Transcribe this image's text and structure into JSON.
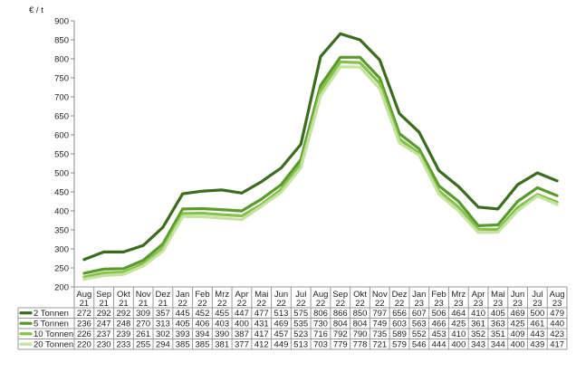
{
  "chart_data": {
    "type": "line",
    "title": "",
    "ylabel": "€ / t",
    "xlabel": "",
    "ylim": [
      200,
      900
    ],
    "yticks": [
      200,
      250,
      300,
      350,
      400,
      450,
      500,
      550,
      600,
      650,
      700,
      750,
      800,
      850,
      900
    ],
    "grid": false,
    "legend": "table-below",
    "categories": [
      [
        "Aug",
        "21"
      ],
      [
        "Sep",
        "21"
      ],
      [
        "Okt",
        "21"
      ],
      [
        "Nov",
        "21"
      ],
      [
        "Dez",
        "21"
      ],
      [
        "Jan",
        "22"
      ],
      [
        "Feb",
        "22"
      ],
      [
        "Mrz",
        "22"
      ],
      [
        "Apr",
        "22"
      ],
      [
        "Mai",
        "22"
      ],
      [
        "Jun",
        "22"
      ],
      [
        "Jul",
        "22"
      ],
      [
        "Aug",
        "22"
      ],
      [
        "Sep",
        "22"
      ],
      [
        "Okt",
        "22"
      ],
      [
        "Nov",
        "22"
      ],
      [
        "Dez",
        "22"
      ],
      [
        "Jan",
        "23"
      ],
      [
        "Feb",
        "23"
      ],
      [
        "Mrz",
        "23"
      ],
      [
        "Apr",
        "23"
      ],
      [
        "Mai",
        "23"
      ],
      [
        "Jun",
        "23"
      ],
      [
        "Jul",
        "23"
      ],
      [
        "Aug",
        "23"
      ]
    ],
    "series": [
      {
        "name": "2 Tonnen",
        "color": "#3b6b1e",
        "values": [
          272,
          292,
          292,
          309,
          357,
          445,
          452,
          455,
          447,
          477,
          513,
          575,
          806,
          866,
          850,
          797,
          656,
          607,
          506,
          464,
          410,
          405,
          469,
          500,
          479
        ]
      },
      {
        "name": "5 Tonnen",
        "color": "#5a9a2c",
        "values": [
          236,
          247,
          248,
          270,
          313,
          405,
          406,
          403,
          400,
          431,
          469,
          535,
          730,
          804,
          804,
          749,
          603,
          563,
          466,
          425,
          361,
          363,
          425,
          461,
          440
        ]
      },
      {
        "name": "10 Tonnen",
        "color": "#86c24a",
        "values": [
          226,
          237,
          239,
          261,
          302,
          393,
          394,
          390,
          387,
          417,
          457,
          523,
          716,
          792,
          790,
          735,
          589,
          552,
          453,
          410,
          352,
          351,
          409,
          443,
          423
        ]
      },
      {
        "name": "20 Tonnen",
        "color": "#c4e3a0",
        "values": [
          220,
          230,
          233,
          255,
          294,
          385,
          385,
          381,
          377,
          412,
          449,
          513,
          703,
          779,
          778,
          721,
          579,
          546,
          444,
          400,
          343,
          344,
          400,
          439,
          417
        ]
      }
    ]
  }
}
